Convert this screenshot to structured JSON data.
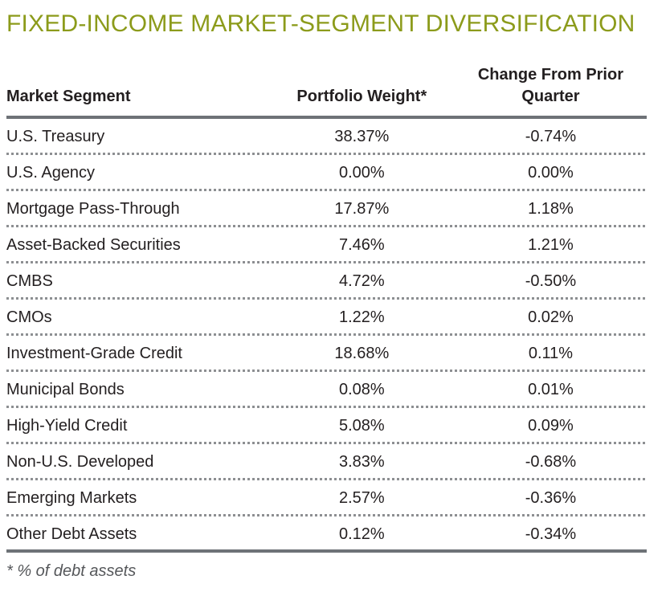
{
  "title": "FIXED-INCOME MARKET-SEGMENT DIVERSIFICATION",
  "footnote": "* % of debt assets",
  "colors": {
    "title_green": "#8c9b1b",
    "rule_gray": "#6e7277",
    "dot_gray": "#8d8f92",
    "text_dark": "#231f20",
    "footnote_gray": "#55575a"
  },
  "table": {
    "columns": [
      "Market Segment",
      "Portfolio Weight*",
      "Change From Prior Quarter"
    ],
    "rows": [
      {
        "segment": "U.S. Treasury",
        "weight": "38.37%",
        "change": "-0.74%"
      },
      {
        "segment": "U.S. Agency",
        "weight": "0.00%",
        "change": "0.00%"
      },
      {
        "segment": "Mortgage Pass-Through",
        "weight": "17.87%",
        "change": "1.18%"
      },
      {
        "segment": "Asset-Backed Securities",
        "weight": "7.46%",
        "change": "1.21%"
      },
      {
        "segment": "CMBS",
        "weight": "4.72%",
        "change": "-0.50%"
      },
      {
        "segment": "CMOs",
        "weight": "1.22%",
        "change": "0.02%"
      },
      {
        "segment": "Investment-Grade Credit",
        "weight": "18.68%",
        "change": "0.11%"
      },
      {
        "segment": "Municipal Bonds",
        "weight": "0.08%",
        "change": "0.01%"
      },
      {
        "segment": "High-Yield Credit",
        "weight": "5.08%",
        "change": "0.09%"
      },
      {
        "segment": "Non-U.S. Developed",
        "weight": "3.83%",
        "change": "-0.68%"
      },
      {
        "segment": "Emerging Markets",
        "weight": "2.57%",
        "change": "-0.36%"
      },
      {
        "segment": "Other Debt Assets",
        "weight": "0.12%",
        "change": "-0.34%"
      }
    ]
  },
  "chart_data": {
    "type": "table",
    "title": "FIXED-INCOME MARKET-SEGMENT DIVERSIFICATION",
    "columns": [
      "Market Segment",
      "Portfolio Weight*",
      "Change From Prior Quarter"
    ],
    "units": "percent",
    "rows": [
      [
        "U.S. Treasury",
        38.37,
        -0.74
      ],
      [
        "U.S. Agency",
        0.0,
        0.0
      ],
      [
        "Mortgage Pass-Through",
        17.87,
        1.18
      ],
      [
        "Asset-Backed Securities",
        7.46,
        1.21
      ],
      [
        "CMBS",
        4.72,
        -0.5
      ],
      [
        "CMOs",
        1.22,
        0.02
      ],
      [
        "Investment-Grade Credit",
        18.68,
        0.11
      ],
      [
        "Municipal Bonds",
        0.08,
        0.01
      ],
      [
        "High-Yield Credit",
        5.08,
        0.09
      ],
      [
        "Non-U.S. Developed",
        3.83,
        -0.68
      ],
      [
        "Emerging Markets",
        2.57,
        -0.36
      ],
      [
        "Other Debt Assets",
        0.12,
        -0.34
      ]
    ],
    "footnote": "* % of debt assets"
  }
}
